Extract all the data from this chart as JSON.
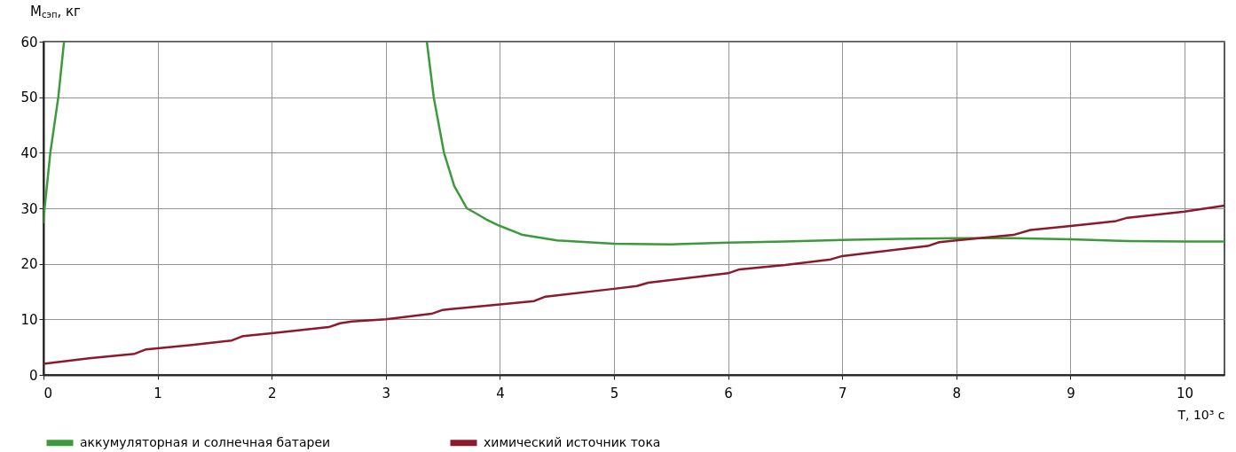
{
  "chart_data": {
    "type": "line",
    "xlabel": "T, 10³ с",
    "ylabel": "M$_{сэп}$, кг",
    "xlim": [
      0,
      10.35
    ],
    "xticks": [
      0,
      1,
      2,
      3,
      4,
      5,
      6,
      7,
      8,
      9,
      10
    ],
    "ylim": [
      0,
      60
    ],
    "yticks": [
      0,
      10,
      20,
      30,
      40,
      50,
      60
    ],
    "grid": true,
    "legend": "bottom",
    "line_style": "solid",
    "marker": "none",
    "series": [
      {
        "name": "аккумуляторная и солнечная батареи",
        "color": "#3c9a3c",
        "x": [
          0,
          0.01,
          0.06,
          0.13,
          0.18,
          0.19,
          3.35,
          3.36,
          3.42,
          3.51,
          3.6,
          3.71,
          3.78,
          3.88,
          3.98,
          4.2,
          4.5,
          5,
          5.5,
          6,
          6.5,
          7,
          7.5,
          8,
          8.5,
          9,
          9.5,
          10,
          10.35
        ],
        "values": [
          27.5,
          30,
          40,
          50,
          60,
          null,
          null,
          60,
          50,
          40,
          34,
          30,
          29.2,
          28,
          27,
          25.2,
          24.2,
          23.6,
          23.5,
          23.8,
          24,
          24.3,
          24.5,
          24.6,
          24.6,
          24.4,
          24.1,
          24,
          24
        ]
      },
      {
        "name": "химический источник тока",
        "color": "#8b1a2b",
        "x": [
          0,
          0.4,
          0.8,
          0.9,
          1,
          1.3,
          1.65,
          1.75,
          2,
          2.5,
          2.6,
          2.7,
          3,
          3.4,
          3.5,
          4,
          4.3,
          4.4,
          5,
          5.2,
          5.3,
          6,
          6.1,
          6.5,
          6.9,
          7,
          7.75,
          7.85,
          8,
          8.5,
          8.65,
          9,
          9.4,
          9.5,
          10,
          10.35
        ],
        "values": [
          2,
          3,
          3.8,
          4.6,
          4.8,
          5.4,
          6.2,
          7,
          7.5,
          8.6,
          9.3,
          9.6,
          10,
          11,
          11.7,
          12.7,
          13.3,
          14.1,
          15.5,
          16,
          16.6,
          18.3,
          19,
          19.8,
          20.8,
          21.4,
          23.2,
          23.9,
          24.2,
          25.2,
          26.1,
          26.8,
          27.7,
          28.3,
          29.4,
          30.5
        ]
      }
    ]
  }
}
